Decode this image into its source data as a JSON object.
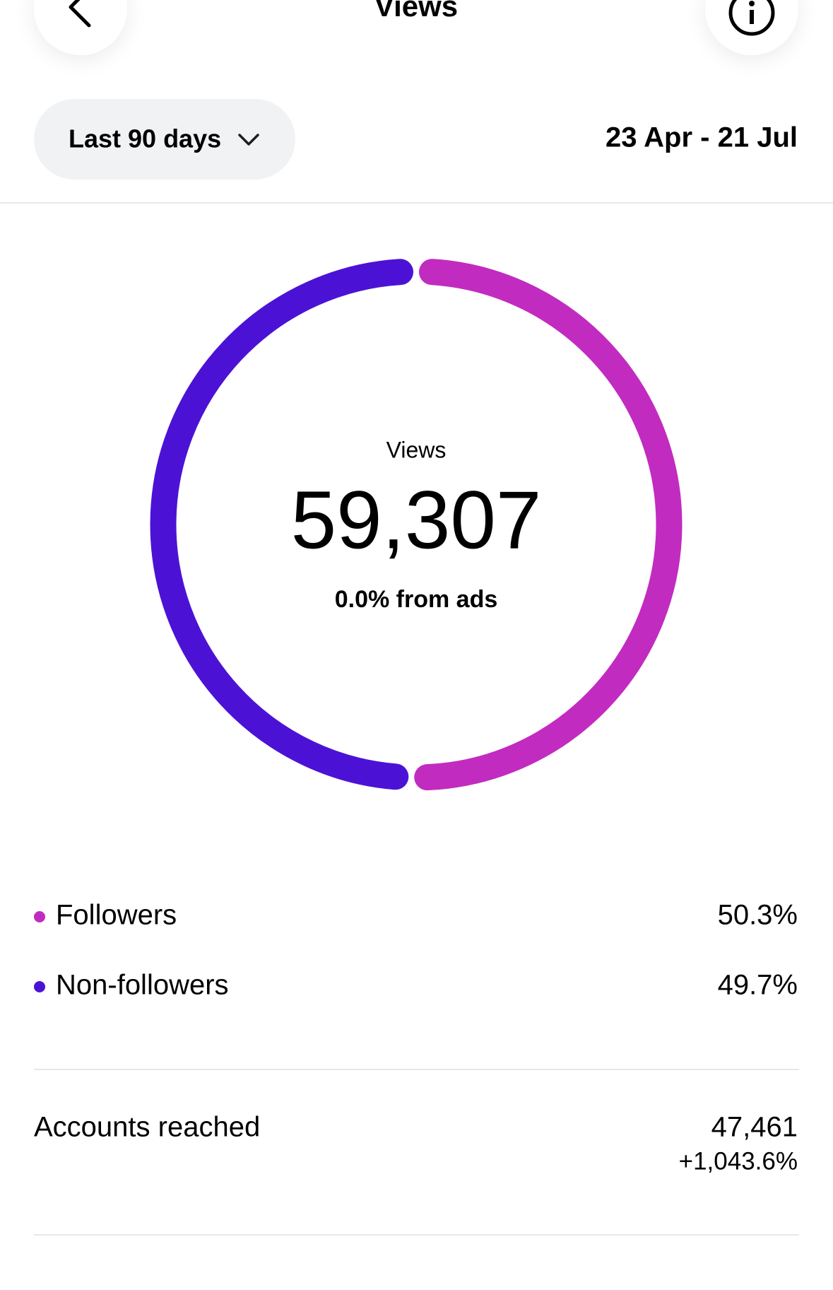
{
  "header": {
    "title": "Views"
  },
  "filter": {
    "period": "Last 90 days",
    "date_range": "23 Apr - 21 Jul"
  },
  "chart_data": {
    "type": "donut",
    "center_title": "Views",
    "center_value": "59,307",
    "center_subtitle": "0.0% from ads",
    "categories": [
      "Followers",
      "Non-followers"
    ],
    "values": [
      50.3,
      49.7
    ],
    "value_labels": [
      "50.3%",
      "49.7%"
    ],
    "colors": [
      "#c22bc0",
      "#4b12d6"
    ]
  },
  "metrics": [
    {
      "label": "Accounts reached",
      "value": "47,461",
      "change": "+1,043.6%"
    }
  ]
}
